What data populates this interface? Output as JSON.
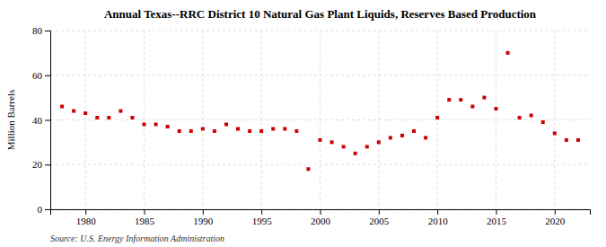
{
  "chart_data": {
    "type": "scatter",
    "title": "Annual Texas--RRC District 10 Natural Gas Plant Liquids, Reserves Based Production",
    "ylabel": "Million Barrels",
    "annotations": [
      "Source: U.S. Energy Information Administration"
    ],
    "x": [
      1978,
      1979,
      1980,
      1981,
      1982,
      1983,
      1984,
      1985,
      1986,
      1987,
      1988,
      1989,
      1990,
      1991,
      1992,
      1993,
      1994,
      1995,
      1996,
      1997,
      1998,
      1999,
      2000,
      2001,
      2002,
      2003,
      2004,
      2005,
      2006,
      2007,
      2008,
      2009,
      2010,
      2011,
      2012,
      2013,
      2014,
      2015,
      2016,
      2017,
      2018,
      2019,
      2020,
      2021,
      2022
    ],
    "values": [
      46,
      44,
      43,
      41,
      41,
      44,
      41,
      38,
      38,
      37,
      35,
      35,
      36,
      35,
      38,
      36,
      35,
      35,
      36,
      36,
      35,
      18,
      31,
      30,
      28,
      25,
      28,
      30,
      32,
      33,
      35,
      32,
      41,
      49,
      49,
      46,
      50,
      45,
      70,
      41,
      42,
      39,
      34,
      31,
      31
    ],
    "color": "#cc0000",
    "marker": "square",
    "xlim": [
      1977,
      2023
    ],
    "ylim": [
      0,
      80
    ],
    "xticks": [
      1980,
      1985,
      1990,
      1995,
      2000,
      2005,
      2010,
      2015,
      2020
    ],
    "yticks": [
      0,
      20,
      40,
      60,
      80
    ],
    "grid": true
  }
}
